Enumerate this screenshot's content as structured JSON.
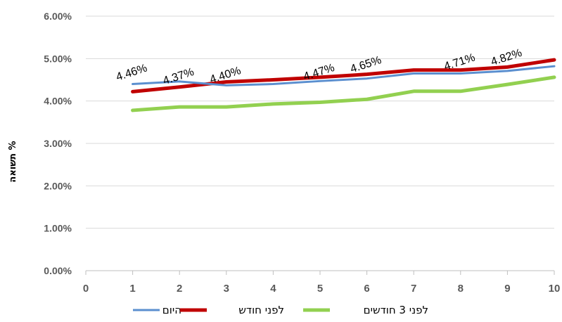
{
  "chart_data": {
    "type": "line",
    "title": "",
    "xlabel": "",
    "ylabel": "תשואה %",
    "x": [
      1,
      2,
      3,
      4,
      5,
      6,
      7,
      8,
      9,
      10
    ],
    "x_ticks": [
      "0",
      "1",
      "2",
      "3",
      "4",
      "5",
      "6",
      "7",
      "8",
      "9",
      "10"
    ],
    "xlim": [
      0,
      10
    ],
    "ylim": [
      0,
      6
    ],
    "y_ticks": [
      "0.00%",
      "1.00%",
      "2.00%",
      "3.00%",
      "4.00%",
      "5.00%",
      "6.00%"
    ],
    "grid": true,
    "legend_position": "bottom",
    "series": [
      {
        "name": "היום",
        "color": "#5B8FCF",
        "values": [
          4.4,
          4.46,
          4.37,
          4.4,
          4.47,
          4.53,
          4.65,
          4.65,
          4.71,
          4.82
        ]
      },
      {
        "name": "לפני חודש",
        "color": "#C00000",
        "values": [
          4.22,
          4.33,
          4.45,
          4.5,
          4.56,
          4.63,
          4.73,
          4.73,
          4.8,
          4.97
        ]
      },
      {
        "name": "לפני 3 חודשים",
        "color": "#92D050",
        "values": [
          3.78,
          3.86,
          3.86,
          3.93,
          3.97,
          4.04,
          4.23,
          4.23,
          4.39,
          4.56
        ]
      }
    ],
    "data_labels": [
      {
        "x": 1,
        "y": 4.46,
        "text": "4.46%"
      },
      {
        "x": 2,
        "y": 4.37,
        "text": "4.37%"
      },
      {
        "x": 3,
        "y": 4.4,
        "text": "4.40%"
      },
      {
        "x": 5,
        "y": 4.47,
        "text": "4.47%"
      },
      {
        "x": 6,
        "y": 4.65,
        "text": "4.65%"
      },
      {
        "x": 8,
        "y": 4.71,
        "text": "4.71%"
      },
      {
        "x": 9,
        "y": 4.82,
        "text": "4.82%"
      }
    ]
  }
}
